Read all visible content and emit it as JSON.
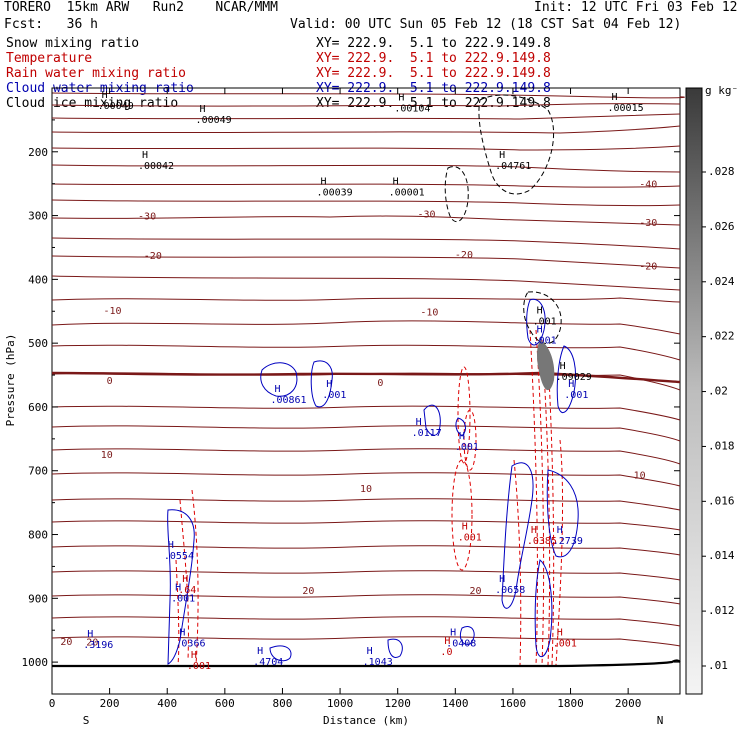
{
  "header": {
    "line1": "TORERO  15km ARW   Run2    NCAR/MMM",
    "line2": "Fcst:   36 h",
    "init": "Init: 12 UTC Fri 03 Feb 12",
    "valid": "Valid: 00 UTC Sun 05 Feb 12 (18 CST Sat 04 Feb 12)",
    "fields": [
      {
        "name": "Snow mixing ratio",
        "xy": "XY= 222.9.  5.1 to 222.9.149.8",
        "color": "#000000"
      },
      {
        "name": "Temperature",
        "xy": "XY= 222.9.  5.1 to 222.9.149.8",
        "color": "#c00000"
      },
      {
        "name": "Rain water mixing ratio",
        "xy": "XY= 222.9.  5.1 to 222.9.149.8",
        "color": "#c00000"
      },
      {
        "name": "Cloud water mixing ratio",
        "xy": "XY= 222.9.  5.1 to 222.9.149.8",
        "color": "#0000b0"
      },
      {
        "name": "Cloud ice mixing ratio",
        "xy": "XY= 222.9.  5.1 to 222.9.149.8",
        "color": "#000000"
      }
    ]
  },
  "chart_data": {
    "type": "contour-cross-section",
    "xlabel": "Distance (km)",
    "ylabel": "Pressure (hPa)",
    "xlim": [
      0,
      2180
    ],
    "ylim": [
      1050,
      100
    ],
    "x_ticks": [
      0,
      200,
      400,
      600,
      800,
      1000,
      1200,
      1400,
      1600,
      1800,
      2000
    ],
    "y_ticks": [
      200,
      300,
      400,
      500,
      600,
      700,
      800,
      900,
      1000
    ],
    "left_end": "S",
    "right_end": "N",
    "colorbar": {
      "unit": "g kg⁻¹",
      "ticks": [
        ".01",
        ".012",
        ".014",
        ".016",
        ".018",
        ".02",
        ".022",
        ".024",
        ".026",
        ".028"
      ]
    },
    "temperature_labels": [
      {
        "text": "-40",
        "x": 2070,
        "p": 250
      },
      {
        "text": "-30",
        "x": 330,
        "p": 300
      },
      {
        "text": "-30",
        "x": 1300,
        "p": 297
      },
      {
        "text": "-30",
        "x": 2070,
        "p": 310
      },
      {
        "text": "-20",
        "x": 350,
        "p": 362
      },
      {
        "text": "-20",
        "x": 1430,
        "p": 360
      },
      {
        "text": "-20",
        "x": 2070,
        "p": 378
      },
      {
        "text": "-10",
        "x": 210,
        "p": 448
      },
      {
        "text": "-10",
        "x": 1310,
        "p": 450
      },
      {
        "text": "0",
        "x": 200,
        "p": 558
      },
      {
        "text": "0",
        "x": 1140,
        "p": 561
      },
      {
        "text": "10",
        "x": 190,
        "p": 674
      },
      {
        "text": "10",
        "x": 1090,
        "p": 727
      },
      {
        "text": "10",
        "x": 2040,
        "p": 706
      },
      {
        "text": "20",
        "x": 890,
        "p": 887
      },
      {
        "text": "20",
        "x": 1470,
        "p": 887
      },
      {
        "text": "20",
        "x": 50,
        "p": 967
      },
      {
        "text": "20",
        "x": 140,
        "p": 968
      }
    ],
    "extrema": [
      {
        "text": ".00049",
        "x": 540,
        "p": 150,
        "color": "#000000"
      },
      {
        "text": ".00049",
        "x": 200,
        "p": 128,
        "color": "#000000"
      },
      {
        "text": ".00104",
        "x": 1230,
        "p": 132,
        "color": "#000000"
      },
      {
        "text": ".00015",
        "x": 1970,
        "p": 131,
        "color": "#000000"
      },
      {
        "text": ".00042",
        "x": 340,
        "p": 222,
        "color": "#000000"
      },
      {
        "text": ".00039",
        "x": 960,
        "p": 264,
        "color": "#000000"
      },
      {
        "text": ".00001",
        "x": 1210,
        "p": 264,
        "color": "#000000"
      },
      {
        "text": ".04761",
        "x": 1580,
        "p": 222,
        "color": "#000000"
      },
      {
        "text": ".001",
        "x": 1710,
        "p": 466,
        "color": "#000000"
      },
      {
        "text": ".001",
        "x": 1710,
        "p": 496,
        "color": "#0000b0"
      },
      {
        "text": ".09029",
        "x": 1790,
        "p": 553,
        "color": "#000000"
      },
      {
        "text": ".001",
        "x": 1820,
        "p": 581,
        "color": "#0000b0"
      },
      {
        "text": ".00861",
        "x": 800,
        "p": 589,
        "color": "#0000b0"
      },
      {
        "text": ".001",
        "x": 980,
        "p": 581,
        "color": "#0000b0"
      },
      {
        "text": ".0117",
        "x": 1290,
        "p": 641,
        "color": "#0000b0"
      },
      {
        "text": ".001",
        "x": 1440,
        "p": 663,
        "color": "#0000b0"
      },
      {
        "text": ".001",
        "x": 1450,
        "p": 805,
        "color": "#c00000"
      },
      {
        "text": ".0385",
        "x": 1690,
        "p": 810,
        "color": "#c00000"
      },
      {
        "text": ".2739",
        "x": 1780,
        "p": 810,
        "color": "#0000b0"
      },
      {
        "text": ".0554",
        "x": 430,
        "p": 834,
        "color": "#0000b0"
      },
      {
        "text": ".64",
        "x": 480,
        "p": 887,
        "color": "#c00000"
      },
      {
        "text": ".001",
        "x": 455,
        "p": 900,
        "color": "#0000b0"
      },
      {
        "text": ".0658",
        "x": 1580,
        "p": 887,
        "color": "#0000b0"
      },
      {
        "text": ".3196",
        "x": 150,
        "p": 973,
        "color": "#0000b0"
      },
      {
        "text": ".0366",
        "x": 470,
        "p": 971,
        "color": "#0000b0"
      },
      {
        "text": ".0408",
        "x": 1410,
        "p": 971,
        "color": "#0000b0"
      },
      {
        "text": ".0",
        "x": 1390,
        "p": 984,
        "color": "#c00000"
      },
      {
        "text": ".001",
        "x": 1780,
        "p": 971,
        "color": "#c00000"
      },
      {
        "text": ".4704",
        "x": 740,
        "p": 1000,
        "color": "#0000b0"
      },
      {
        "text": ".1043",
        "x": 1120,
        "p": 1000,
        "color": "#0000b0"
      },
      {
        "text": ".001",
        "x": 510,
        "p": 1006,
        "color": "#c00000"
      }
    ]
  }
}
